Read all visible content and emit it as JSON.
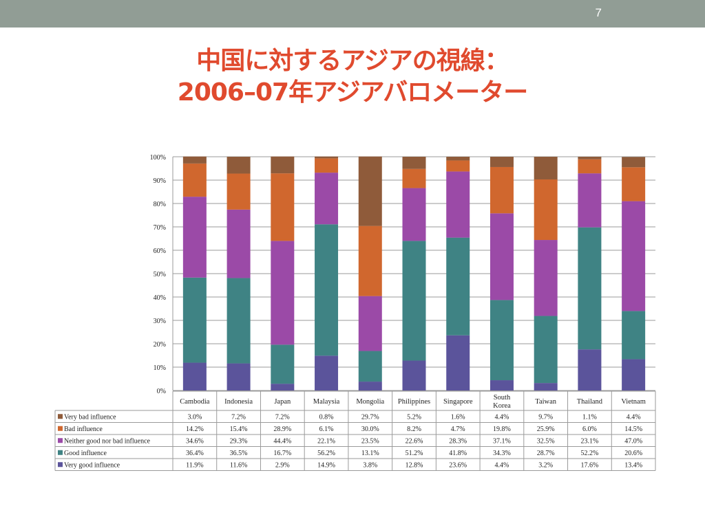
{
  "slide": {
    "number": "7",
    "title_line1": "中国に対するアジアの視線：",
    "title_line2": "2006–07年アジアバロメーター"
  },
  "chart_data": {
    "type": "bar",
    "stacked": true,
    "categories": [
      "Cambodia",
      "Indonesia",
      "Japan",
      "Malaysia",
      "Mongolia",
      "Philippines",
      "Singapore",
      "South Korea",
      "Taiwan",
      "Thailand",
      "Vietnam"
    ],
    "category_lines": [
      [
        "Cambodia"
      ],
      [
        "Indonesia"
      ],
      [
        "Japan"
      ],
      [
        "Malaysia"
      ],
      [
        "Mongolia"
      ],
      [
        "Philippines"
      ],
      [
        "Singapore"
      ],
      [
        "South",
        "Korea"
      ],
      [
        "Taiwan"
      ],
      [
        "Thailand"
      ],
      [
        "Vietnam"
      ]
    ],
    "ylim": [
      0,
      100
    ],
    "yticks": [
      "0%",
      "10%",
      "20%",
      "30%",
      "40%",
      "50%",
      "60%",
      "70%",
      "80%",
      "90%",
      "100%"
    ],
    "grid": true,
    "legend_placement": "data-table-left",
    "series": [
      {
        "name": "Very good influence",
        "color": "#5b549b",
        "values": [
          11.9,
          11.6,
          2.9,
          14.9,
          3.8,
          12.8,
          23.6,
          4.4,
          3.2,
          17.6,
          13.4
        ],
        "labels": [
          "11.9%",
          "11.6%",
          "2.9%",
          "14.9%",
          "3.8%",
          "12.8%",
          "23.6%",
          "4.4%",
          "3.2%",
          "17.6%",
          "13.4%"
        ]
      },
      {
        "name": "Good influence",
        "color": "#3f8384",
        "values": [
          36.4,
          36.5,
          16.7,
          56.2,
          13.1,
          51.2,
          41.8,
          34.3,
          28.7,
          52.2,
          20.6
        ],
        "labels": [
          "36.4%",
          "36.5%",
          "16.7%",
          "56.2%",
          "13.1%",
          "51.2%",
          "41.8%",
          "34.3%",
          "28.7%",
          "52.2%",
          "20.6%"
        ]
      },
      {
        "name": "Neither good nor bad influence",
        "color": "#9b4aa7",
        "values": [
          34.6,
          29.3,
          44.4,
          22.1,
          23.5,
          22.6,
          28.3,
          37.1,
          32.5,
          23.1,
          47.0
        ],
        "labels": [
          "34.6%",
          "29.3%",
          "44.4%",
          "22.1%",
          "23.5%",
          "22.6%",
          "28.3%",
          "37.1%",
          "32.5%",
          "23.1%",
          "47.0%"
        ]
      },
      {
        "name": "Bad influence",
        "color": "#d0672e",
        "values": [
          14.2,
          15.4,
          28.9,
          6.1,
          30.0,
          8.2,
          4.7,
          19.8,
          25.9,
          6.0,
          14.5
        ],
        "labels": [
          "14.2%",
          "15.4%",
          "28.9%",
          "6.1%",
          "30.0%",
          "8.2%",
          "4.7%",
          "19.8%",
          "25.9%",
          "6.0%",
          "14.5%"
        ]
      },
      {
        "name": "Very bad influence",
        "color": "#8f5b3a",
        "values": [
          3.0,
          7.2,
          7.2,
          0.8,
          29.7,
          5.2,
          1.6,
          4.4,
          9.7,
          1.1,
          4.4
        ],
        "labels": [
          "3.0%",
          "7.2%",
          "7.2%",
          "0.8%",
          "29.7%",
          "5.2%",
          "1.6%",
          "4.4%",
          "9.7%",
          "1.1%",
          "4.4%"
        ]
      }
    ]
  }
}
